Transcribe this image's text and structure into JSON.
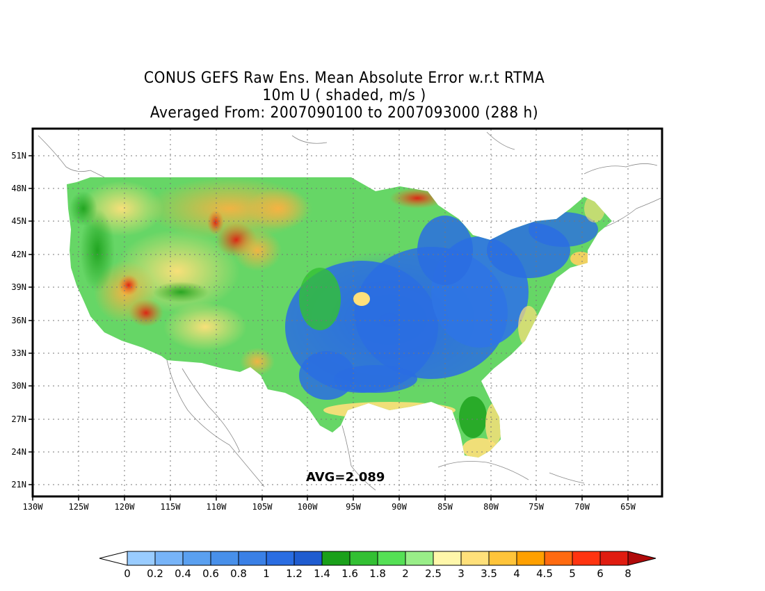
{
  "title": {
    "line1": "CONUS GEFS Raw Ens. Mean Absolute Error w.r.t RTMA",
    "line2": "10m U ( shaded, m/s )",
    "line3": "Averaged From: 2007090100 to 2007093000 (288 h)"
  },
  "avg_label": "AVG=2.089",
  "axes": {
    "lon_labels": [
      "130W",
      "125W",
      "120W",
      "115W",
      "110W",
      "105W",
      "100W",
      "95W",
      "90W",
      "85W",
      "80W",
      "75W",
      "70W",
      "65W"
    ],
    "lat_labels": [
      "51N",
      "48N",
      "45N",
      "42N",
      "39N",
      "36N",
      "33N",
      "30N",
      "27N",
      "24N",
      "21N"
    ]
  },
  "colorbar": {
    "labels": [
      "0",
      "0.2",
      "0.4",
      "0.6",
      "0.8",
      "1",
      "1.2",
      "1.4",
      "1.6",
      "1.8",
      "2",
      "2.5",
      "3",
      "3.5",
      "4",
      "4.5",
      "5",
      "6",
      "8"
    ],
    "colors": [
      "#99ccff",
      "#77b4f8",
      "#5aa0f0",
      "#4890ea",
      "#3a80e6",
      "#2a6de2",
      "#1f5cd0",
      "#1aa01a",
      "#33c033",
      "#55e055",
      "#99ee88",
      "#fff7aa",
      "#ffe07a",
      "#ffc43a",
      "#ffa000",
      "#ff6a10",
      "#ff3410",
      "#e01c10",
      "#b00a0a"
    ]
  },
  "colors": {
    "low_blue": "#2a6de2",
    "mid_green": "#33c033",
    "high_orange": "#ffa000",
    "high_red": "#e01c10"
  }
}
